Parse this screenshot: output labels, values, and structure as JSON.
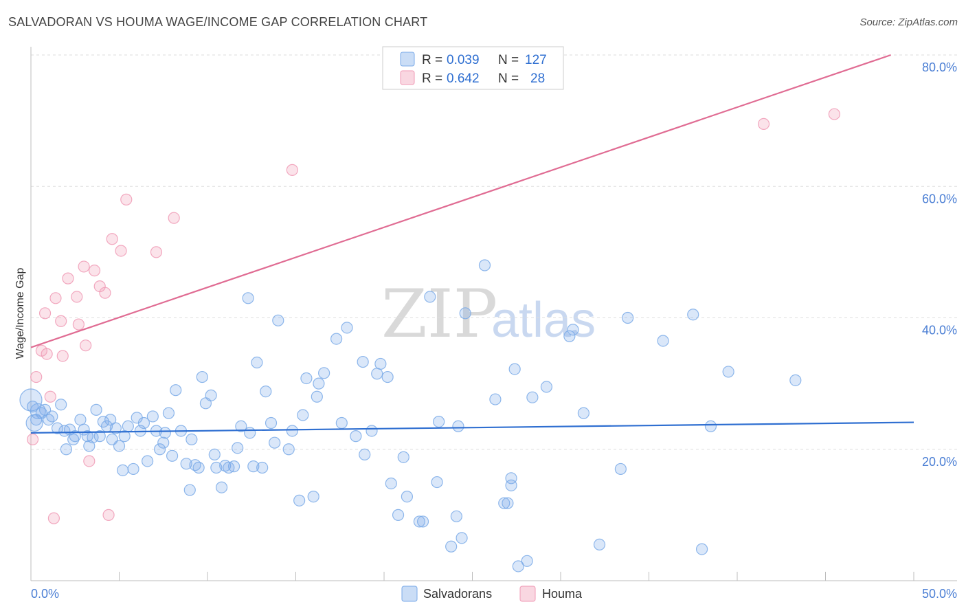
{
  "header": {
    "title": "SALVADORAN VS HOUMA WAGE/INCOME GAP CORRELATION CHART",
    "source": "Source: ZipAtlas.com"
  },
  "watermark": {
    "zip": "ZIP",
    "atlas": "atlas"
  },
  "legend": {
    "r_label": "R =",
    "n_label": "N =",
    "series": [
      {
        "name": "Salvadorans",
        "r": "0.039",
        "n": "127",
        "color": "#7aaae8"
      },
      {
        "name": "Houma",
        "r": "0.642",
        "n": "28",
        "color": "#f09ab5"
      }
    ]
  },
  "chart_data": {
    "type": "scatter",
    "title": "SALVADORAN VS HOUMA WAGE/INCOME GAP CORRELATION CHART",
    "xlabel": "",
    "ylabel": "Wage/Income Gap",
    "xlim": [
      0,
      50
    ],
    "ylim": [
      0,
      80
    ],
    "x_tick_labels": [
      "0.0%",
      "50.0%"
    ],
    "y_ticks": [
      20,
      40,
      60,
      80
    ],
    "y_tick_labels": [
      "20.0%",
      "40.0%",
      "60.0%",
      "80.0%"
    ],
    "grid": true,
    "series": [
      {
        "name": "Salvadorans",
        "color": "#7aaae8",
        "trend": {
          "x": [
            0,
            50
          ],
          "y": [
            22.5,
            24.1
          ],
          "color": "#2f6fd1"
        },
        "points": [
          [
            0.1,
            26.5
          ],
          [
            0.3,
            24.5
          ],
          [
            0.6,
            25.5
          ],
          [
            0.8,
            26.0
          ],
          [
            1.0,
            24.5
          ],
          [
            1.2,
            25.0
          ],
          [
            1.5,
            23.2
          ],
          [
            1.7,
            26.8
          ],
          [
            1.9,
            22.8
          ],
          [
            2.0,
            20.0
          ],
          [
            2.2,
            23.0
          ],
          [
            2.4,
            21.5
          ],
          [
            2.5,
            22.0
          ],
          [
            2.8,
            24.5
          ],
          [
            3.0,
            23.0
          ],
          [
            3.2,
            22.0
          ],
          [
            3.3,
            20.5
          ],
          [
            3.5,
            21.8
          ],
          [
            3.7,
            26.0
          ],
          [
            3.9,
            22.0
          ],
          [
            4.1,
            24.2
          ],
          [
            4.3,
            23.5
          ],
          [
            4.5,
            24.5
          ],
          [
            4.6,
            21.5
          ],
          [
            4.8,
            23.2
          ],
          [
            5.0,
            20.5
          ],
          [
            5.2,
            16.8
          ],
          [
            5.3,
            22.0
          ],
          [
            5.5,
            23.5
          ],
          [
            5.8,
            17.0
          ],
          [
            6.0,
            24.8
          ],
          [
            6.2,
            22.8
          ],
          [
            6.4,
            24.0
          ],
          [
            6.6,
            18.2
          ],
          [
            6.9,
            25.0
          ],
          [
            7.1,
            22.8
          ],
          [
            7.3,
            20.0
          ],
          [
            7.5,
            21.0
          ],
          [
            7.6,
            22.5
          ],
          [
            7.8,
            25.5
          ],
          [
            8.0,
            19.0
          ],
          [
            8.2,
            29.0
          ],
          [
            8.5,
            22.8
          ],
          [
            8.8,
            17.8
          ],
          [
            9.0,
            13.8
          ],
          [
            9.1,
            21.5
          ],
          [
            9.3,
            17.6
          ],
          [
            9.5,
            17.2
          ],
          [
            9.7,
            31.0
          ],
          [
            9.9,
            27.0
          ],
          [
            10.2,
            28.2
          ],
          [
            10.4,
            19.2
          ],
          [
            10.5,
            17.2
          ],
          [
            10.8,
            14.2
          ],
          [
            11.0,
            17.5
          ],
          [
            11.2,
            17.2
          ],
          [
            11.5,
            17.4
          ],
          [
            11.7,
            20.2
          ],
          [
            11.9,
            23.5
          ],
          [
            12.3,
            43.0
          ],
          [
            12.4,
            22.5
          ],
          [
            12.6,
            17.4
          ],
          [
            12.8,
            33.2
          ],
          [
            13.1,
            17.2
          ],
          [
            13.3,
            28.8
          ],
          [
            13.6,
            24.0
          ],
          [
            13.8,
            21.0
          ],
          [
            14.0,
            39.6
          ],
          [
            14.6,
            20.0
          ],
          [
            14.8,
            22.8
          ],
          [
            15.2,
            12.2
          ],
          [
            15.4,
            25.2
          ],
          [
            15.6,
            30.8
          ],
          [
            16.0,
            12.8
          ],
          [
            16.2,
            28.0
          ],
          [
            16.3,
            30.0
          ],
          [
            16.6,
            31.6
          ],
          [
            17.3,
            36.8
          ],
          [
            17.6,
            24.0
          ],
          [
            17.9,
            38.5
          ],
          [
            18.4,
            22.0
          ],
          [
            18.8,
            33.3
          ],
          [
            18.9,
            19.2
          ],
          [
            19.3,
            22.8
          ],
          [
            19.6,
            31.5
          ],
          [
            19.8,
            33.0
          ],
          [
            20.2,
            31.0
          ],
          [
            20.4,
            14.8
          ],
          [
            20.8,
            10.0
          ],
          [
            21.1,
            18.8
          ],
          [
            21.3,
            12.8
          ],
          [
            22.0,
            9.0
          ],
          [
            22.2,
            9.0
          ],
          [
            22.6,
            43.2
          ],
          [
            23.0,
            15.0
          ],
          [
            23.1,
            24.2
          ],
          [
            23.8,
            5.2
          ],
          [
            24.1,
            9.8
          ],
          [
            24.2,
            23.5
          ],
          [
            24.4,
            6.5
          ],
          [
            24.6,
            40.7
          ],
          [
            25.7,
            48.0
          ],
          [
            26.3,
            27.6
          ],
          [
            26.8,
            11.8
          ],
          [
            27.0,
            11.8
          ],
          [
            27.2,
            14.5
          ],
          [
            27.2,
            15.6
          ],
          [
            27.4,
            32.2
          ],
          [
            27.6,
            2.2
          ],
          [
            28.1,
            3.0
          ],
          [
            28.4,
            27.9
          ],
          [
            29.2,
            29.5
          ],
          [
            30.5,
            37.2
          ],
          [
            30.7,
            38.2
          ],
          [
            31.3,
            25.5
          ],
          [
            32.2,
            5.5
          ],
          [
            33.4,
            17.0
          ],
          [
            33.8,
            40.0
          ],
          [
            35.8,
            36.5
          ],
          [
            37.5,
            40.5
          ],
          [
            38.0,
            4.8
          ],
          [
            38.5,
            23.5
          ],
          [
            39.5,
            31.8
          ],
          [
            43.3,
            30.5
          ],
          [
            0.0,
            27.5
          ],
          [
            0.2,
            24.0
          ],
          [
            0.4,
            25.8
          ]
        ]
      },
      {
        "name": "Houma",
        "color": "#f09ab5",
        "trend": {
          "x": [
            0,
            48.7
          ],
          "y": [
            35.5,
            80.0
          ],
          "color": "#e06c93"
        },
        "points": [
          [
            0.1,
            21.5
          ],
          [
            0.3,
            31.0
          ],
          [
            0.6,
            35.0
          ],
          [
            0.8,
            40.7
          ],
          [
            0.9,
            34.5
          ],
          [
            1.1,
            28.0
          ],
          [
            1.3,
            9.5
          ],
          [
            1.4,
            43.0
          ],
          [
            1.7,
            39.5
          ],
          [
            1.8,
            34.2
          ],
          [
            2.1,
            46.0
          ],
          [
            2.6,
            43.2
          ],
          [
            2.7,
            39.0
          ],
          [
            3.0,
            47.8
          ],
          [
            3.1,
            35.8
          ],
          [
            3.3,
            18.2
          ],
          [
            3.6,
            47.2
          ],
          [
            3.9,
            44.8
          ],
          [
            4.2,
            43.8
          ],
          [
            4.4,
            10.0
          ],
          [
            4.6,
            52.0
          ],
          [
            5.1,
            50.2
          ],
          [
            5.4,
            58.0
          ],
          [
            7.1,
            50.0
          ],
          [
            8.1,
            55.2
          ],
          [
            14.8,
            62.5
          ],
          [
            41.5,
            69.5
          ],
          [
            45.5,
            71.0
          ]
        ]
      }
    ]
  }
}
